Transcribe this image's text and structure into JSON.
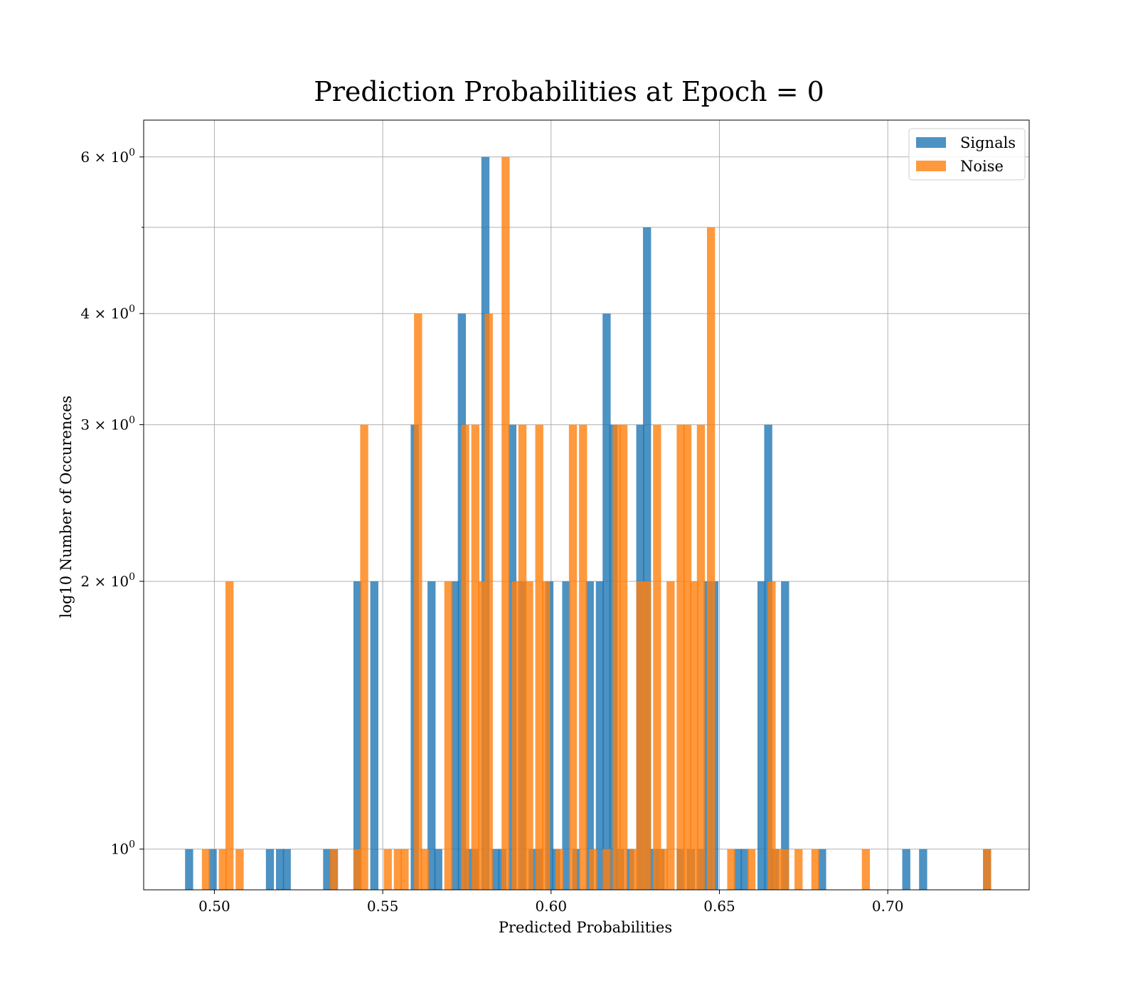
{
  "chart_data": {
    "type": "bar",
    "title": "Prediction Probabilities at Epoch = 0",
    "xlabel": "Predicted Probabilities",
    "ylabel": "log10 Number of Occurences",
    "xlim": [
      0.479,
      0.742
    ],
    "ylim": [
      0.9,
      6.6
    ],
    "y_scale": "log",
    "grid": true,
    "legend_position": "upper right",
    "x_ticks": [
      {
        "value": 0.5,
        "label": "0.50"
      },
      {
        "value": 0.55,
        "label": "0.55"
      },
      {
        "value": 0.6,
        "label": "0.60"
      },
      {
        "value": 0.65,
        "label": "0.65"
      },
      {
        "value": 0.7,
        "label": "0.70"
      }
    ],
    "y_ticks": [
      {
        "value": 1,
        "base": "10",
        "exp": "0"
      },
      {
        "value": 2,
        "base": "2 × 10",
        "exp": "0"
      },
      {
        "value": 3,
        "base": "3 × 10",
        "exp": "0"
      },
      {
        "value": 4,
        "base": "4 × 10",
        "exp": "0"
      },
      {
        "value": 6,
        "base": "6 × 10",
        "exp": "0"
      }
    ],
    "y_minor_gridlines": [
      5
    ],
    "bin_width": 0.0024,
    "series": [
      {
        "name": "Signals",
        "color": "#1f77b4",
        "opacity": 0.8,
        "x": [
          0.4925,
          0.4995,
          0.5165,
          0.5195,
          0.5215,
          0.5335,
          0.5355,
          0.5425,
          0.5475,
          0.5595,
          0.5645,
          0.5665,
          0.5715,
          0.5735,
          0.5755,
          0.5775,
          0.5805,
          0.5835,
          0.5855,
          0.5885,
          0.5915,
          0.5945,
          0.5965,
          0.5995,
          0.6015,
          0.6045,
          0.6075,
          0.6115,
          0.6145,
          0.6165,
          0.6185,
          0.6205,
          0.6235,
          0.6265,
          0.6285,
          0.6305,
          0.6325,
          0.6385,
          0.6415,
          0.6445,
          0.6465,
          0.6485,
          0.6555,
          0.6575,
          0.6625,
          0.6645,
          0.6665,
          0.6695,
          0.6805,
          0.7055,
          0.7105,
          0.7295
        ],
        "values": [
          1,
          1,
          1,
          1,
          1,
          1,
          1,
          2,
          2,
          3,
          2,
          1,
          2,
          4,
          1,
          1,
          6,
          1,
          1,
          3,
          2,
          1,
          1,
          2,
          1,
          2,
          1,
          2,
          2,
          4,
          3,
          1,
          1,
          3,
          5,
          1,
          1,
          1,
          1,
          1,
          2,
          2,
          1,
          1,
          2,
          3,
          1,
          2,
          1,
          1,
          1,
          1
        ]
      },
      {
        "name": "Noise",
        "color": "#ff7f0e",
        "opacity": 0.8,
        "x": [
          0.4975,
          0.5025,
          0.5045,
          0.5075,
          0.5355,
          0.5425,
          0.5445,
          0.5515,
          0.5545,
          0.5565,
          0.5605,
          0.5625,
          0.5695,
          0.5745,
          0.5775,
          0.5795,
          0.5815,
          0.5865,
          0.5895,
          0.5915,
          0.5935,
          0.5965,
          0.5985,
          0.6025,
          0.6065,
          0.6095,
          0.6125,
          0.6165,
          0.6195,
          0.6215,
          0.6245,
          0.6265,
          0.6285,
          0.6315,
          0.6335,
          0.6355,
          0.6385,
          0.6405,
          0.6425,
          0.6445,
          0.6475,
          0.6535,
          0.6595,
          0.6655,
          0.6675,
          0.6695,
          0.6735,
          0.6785,
          0.6935,
          0.7295
        ],
        "values": [
          1,
          1,
          2,
          1,
          1,
          1,
          3,
          1,
          1,
          1,
          4,
          1,
          2,
          3,
          3,
          2,
          4,
          6,
          2,
          3,
          2,
          3,
          2,
          1,
          3,
          3,
          1,
          1,
          3,
          3,
          1,
          2,
          2,
          3,
          1,
          2,
          3,
          3,
          2,
          3,
          5,
          1,
          1,
          2,
          1,
          1,
          1,
          1,
          1,
          1
        ]
      }
    ]
  }
}
